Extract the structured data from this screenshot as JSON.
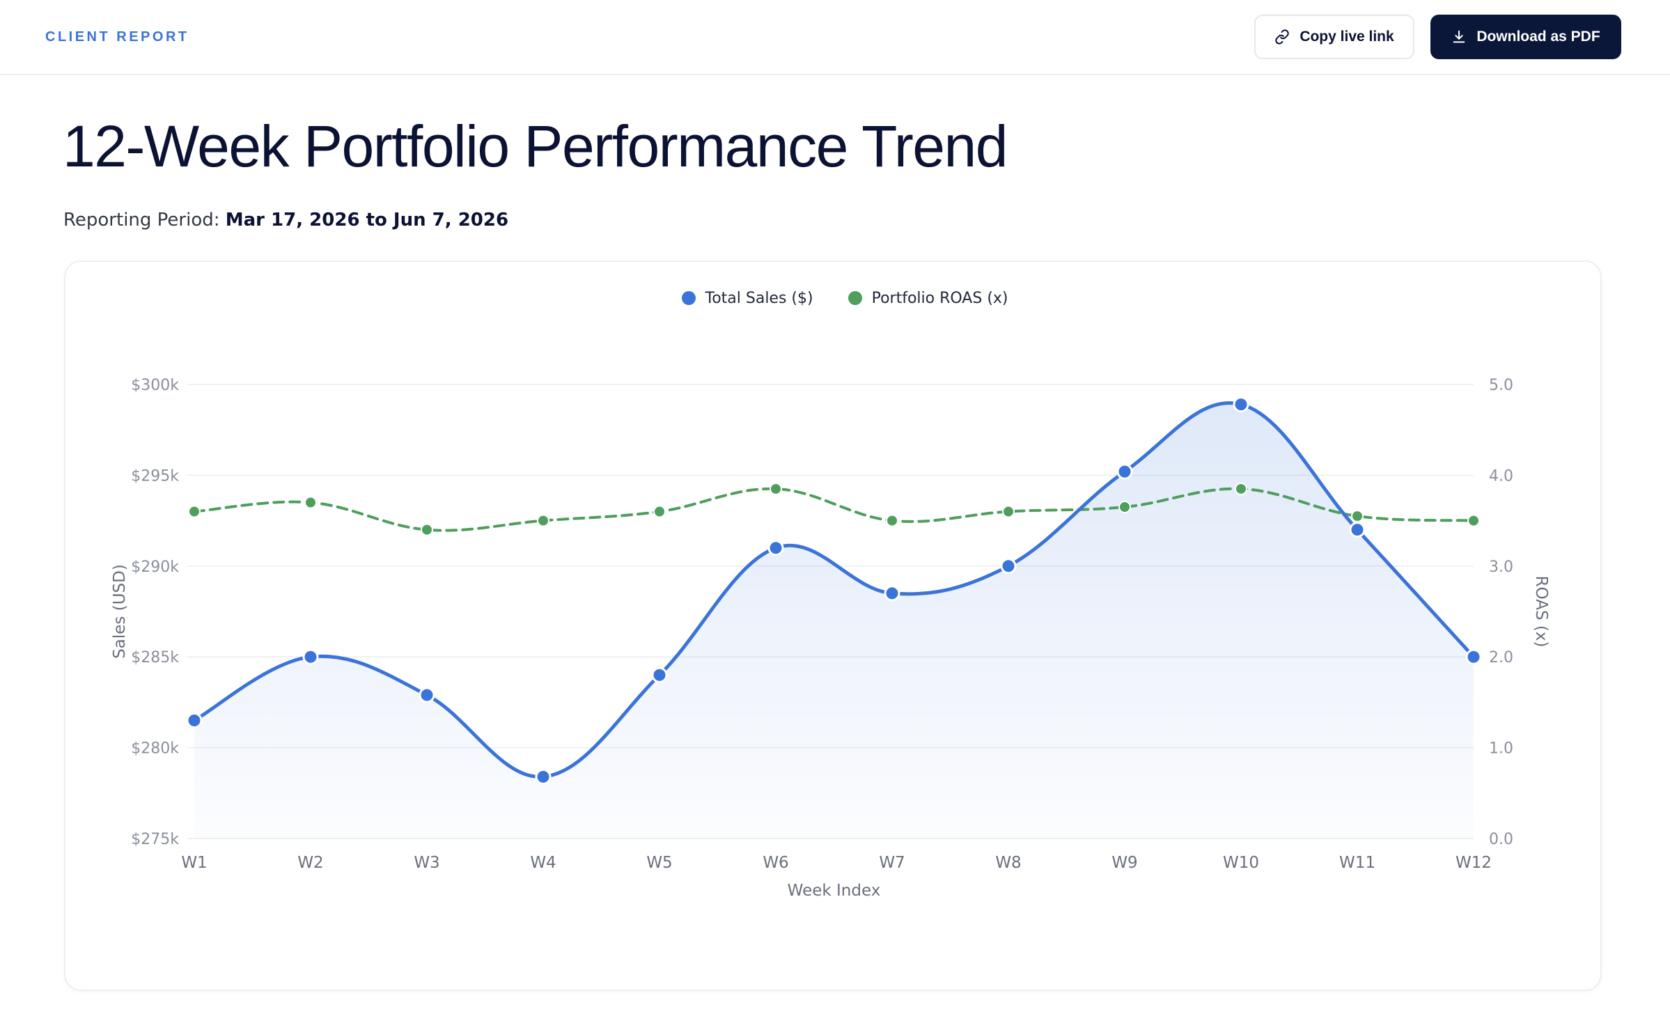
{
  "header": {
    "brand": "CLIENT REPORT",
    "copy_link_label": "Copy live link",
    "download_label": "Download as PDF"
  },
  "page": {
    "title": "12-Week Portfolio Performance Trend",
    "period_label": "Reporting Period:",
    "period_value": "Mar 17, 2026 to Jun 7, 2026"
  },
  "colors": {
    "sales": "#3b74d8",
    "roas": "#4f9e5e",
    "accent_dark": "#0b1739"
  },
  "chart_data": {
    "type": "line",
    "x": [
      "W1",
      "W2",
      "W3",
      "W4",
      "W5",
      "W6",
      "W7",
      "W8",
      "W9",
      "W10",
      "W11",
      "W12"
    ],
    "xlabel": "Week Index",
    "ylabel": "Sales (USD)",
    "y2label": "ROAS (x)",
    "ylim": [
      275000,
      300000
    ],
    "y2lim": [
      0,
      5
    ],
    "y_ticks": [
      "$275k",
      "$280k",
      "$285k",
      "$290k",
      "$295k",
      "$300k"
    ],
    "y2_ticks": [
      "0.0",
      "1.0",
      "2.0",
      "3.0",
      "4.0",
      "5.0"
    ],
    "grid": true,
    "legend_position": "top-center",
    "series": [
      {
        "name": "Total Sales ($)",
        "axis": "left",
        "style": "solid-area",
        "values": [
          281500,
          285000,
          282900,
          278400,
          284000,
          291000,
          288500,
          290000,
          295200,
          298900,
          292000,
          285000
        ]
      },
      {
        "name": "Portfolio ROAS (x)",
        "axis": "right",
        "style": "dashed",
        "values": [
          3.6,
          3.7,
          3.4,
          3.5,
          3.6,
          3.85,
          3.5,
          3.6,
          3.65,
          3.85,
          3.55,
          3.5
        ]
      }
    ]
  }
}
